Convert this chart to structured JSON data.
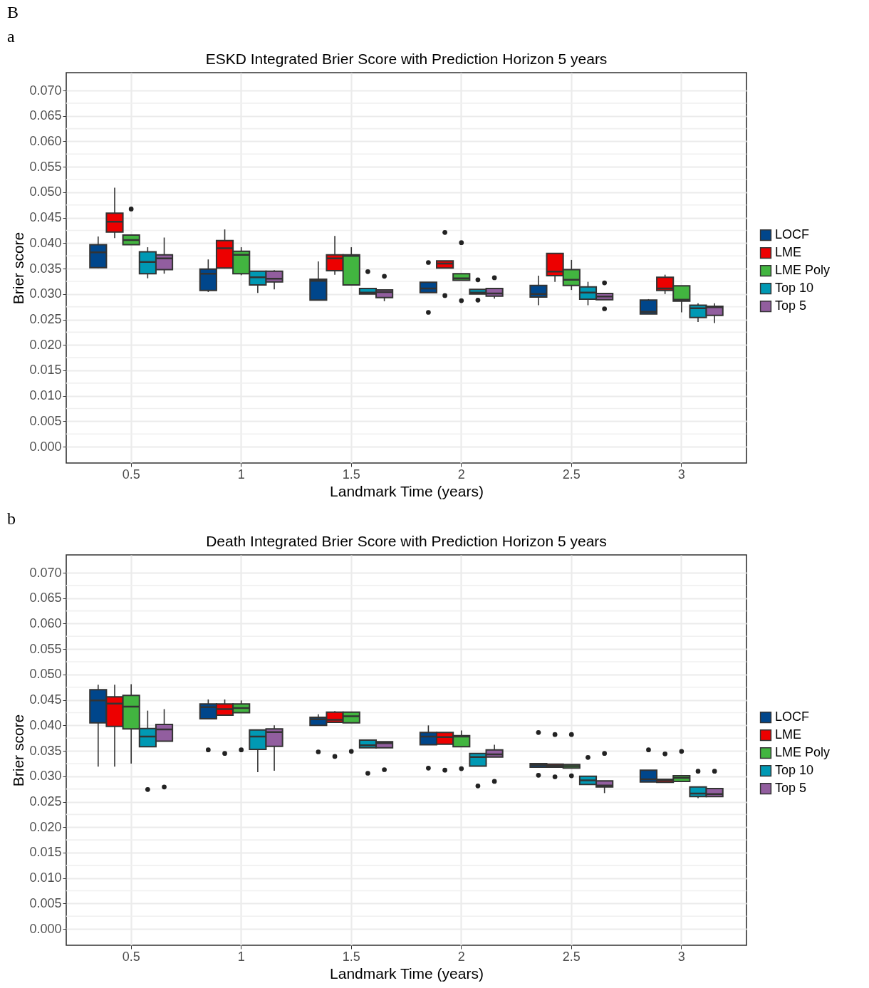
{
  "chart_data": [
    {
      "type": "box",
      "title": "ESKD Integrated Brier Score with Prediction Horizon 5 years",
      "xlabel": "Landmark Time (years)",
      "ylabel": "Brier score",
      "annotations": [
        "B",
        "a"
      ],
      "categories": [
        "0.5",
        "1",
        "1.5",
        "2",
        "2.5",
        "3"
      ],
      "ylim": [
        -0.0032,
        0.0735
      ],
      "yticks": [
        {
          "value": 0,
          "label": "0.000"
        },
        {
          "value": 0.005,
          "label": "0.005"
        },
        {
          "value": 0.01,
          "label": "0.010"
        },
        {
          "value": 0.015,
          "label": "0.015"
        },
        {
          "value": 0.02,
          "label": "0.020"
        },
        {
          "value": 0.025,
          "label": "0.025"
        },
        {
          "value": 0.03,
          "label": "0.030"
        },
        {
          "value": 0.035,
          "label": "0.035"
        },
        {
          "value": 0.04,
          "label": "0.040"
        },
        {
          "value": 0.045,
          "label": "0.045"
        },
        {
          "value": 0.05,
          "label": "0.050"
        },
        {
          "value": 0.055,
          "label": "0.055"
        },
        {
          "value": 0.06,
          "label": "0.060"
        },
        {
          "value": 0.065,
          "label": "0.065"
        },
        {
          "value": 0.07,
          "label": "0.070"
        }
      ],
      "grid": true,
      "legend": "right",
      "series": [
        {
          "name": "LOCF",
          "color": "#00468b",
          "boxes": [
            {
              "low": 0.0351,
              "q1": 0.0352,
              "median": 0.0382,
              "q3": 0.0397,
              "high": 0.0413
            },
            {
              "low": 0.0304,
              "q1": 0.0307,
              "median": 0.034,
              "q3": 0.0349,
              "high": 0.0368
            },
            {
              "low": 0.0288,
              "q1": 0.0288,
              "median": 0.0326,
              "q3": 0.0329,
              "high": 0.0364
            },
            {
              "low": 0.0303,
              "q1": 0.0303,
              "median": 0.0311,
              "q3": 0.0323,
              "high": 0.0323,
              "outliers": [
                0.0362,
                0.0264
              ]
            },
            {
              "low": 0.0278,
              "q1": 0.0294,
              "median": 0.03,
              "q3": 0.0317,
              "high": 0.0336
            },
            {
              "low": 0.0261,
              "q1": 0.0261,
              "median": 0.0265,
              "q3": 0.0288,
              "high": 0.029
            }
          ]
        },
        {
          "name": "LME",
          "color": "#ed0000",
          "boxes": [
            {
              "low": 0.041,
              "q1": 0.0422,
              "median": 0.0442,
              "q3": 0.0459,
              "high": 0.0509
            },
            {
              "low": 0.035,
              "q1": 0.0351,
              "median": 0.039,
              "q3": 0.0405,
              "high": 0.0427
            },
            {
              "low": 0.0338,
              "q1": 0.0346,
              "median": 0.037,
              "q3": 0.0377,
              "high": 0.0414
            },
            {
              "low": 0.0351,
              "q1": 0.0351,
              "median": 0.036,
              "q3": 0.0365,
              "high": 0.0365,
              "outliers": [
                0.0421,
                0.0297
              ]
            },
            {
              "low": 0.0324,
              "q1": 0.0336,
              "median": 0.0344,
              "q3": 0.038,
              "high": 0.038
            },
            {
              "low": 0.03,
              "q1": 0.0307,
              "median": 0.0311,
              "q3": 0.0333,
              "high": 0.0338
            }
          ]
        },
        {
          "name": "LME Poly",
          "color": "#42b540",
          "boxes": [
            {
              "low": 0.0397,
              "q1": 0.0397,
              "median": 0.0406,
              "q3": 0.0416,
              "high": 0.0416,
              "outliers": [
                0.0467
              ]
            },
            {
              "low": 0.0337,
              "q1": 0.034,
              "median": 0.0377,
              "q3": 0.0384,
              "high": 0.0392
            },
            {
              "low": 0.0318,
              "q1": 0.0318,
              "median": 0.0375,
              "q3": 0.0377,
              "high": 0.0392
            },
            {
              "low": 0.0327,
              "q1": 0.0327,
              "median": 0.0331,
              "q3": 0.034,
              "high": 0.034,
              "outliers": [
                0.0401,
                0.0287
              ]
            },
            {
              "low": 0.0308,
              "q1": 0.0317,
              "median": 0.0328,
              "q3": 0.0348,
              "high": 0.0367
            },
            {
              "low": 0.0264,
              "q1": 0.0286,
              "median": 0.0289,
              "q3": 0.0316,
              "high": 0.0316
            }
          ]
        },
        {
          "name": "Top 10",
          "color": "#0099b4",
          "boxes": [
            {
              "low": 0.0331,
              "q1": 0.034,
              "median": 0.0363,
              "q3": 0.0383,
              "high": 0.0392
            },
            {
              "low": 0.0302,
              "q1": 0.0318,
              "median": 0.0333,
              "q3": 0.0345,
              "high": 0.0345
            },
            {
              "low": 0.03,
              "q1": 0.03,
              "median": 0.0303,
              "q3": 0.0311,
              "high": 0.0311,
              "outliers": [
                0.0344
              ]
            },
            {
              "low": 0.03,
              "q1": 0.03,
              "median": 0.0303,
              "q3": 0.0309,
              "high": 0.0309,
              "outliers": [
                0.0328,
                0.0288
              ]
            },
            {
              "low": 0.0278,
              "q1": 0.029,
              "median": 0.0303,
              "q3": 0.0314,
              "high": 0.0324
            },
            {
              "low": 0.0245,
              "q1": 0.0254,
              "median": 0.0272,
              "q3": 0.0278,
              "high": 0.0282
            }
          ]
        },
        {
          "name": "Top 5",
          "color": "#925e9f",
          "boxes": [
            {
              "low": 0.034,
              "q1": 0.0348,
              "median": 0.037,
              "q3": 0.0377,
              "high": 0.0411
            },
            {
              "low": 0.0309,
              "q1": 0.0324,
              "median": 0.033,
              "q3": 0.0345,
              "high": 0.0347
            },
            {
              "low": 0.0286,
              "q1": 0.0293,
              "median": 0.0304,
              "q3": 0.0308,
              "high": 0.0308,
              "outliers": [
                0.0335
              ]
            },
            {
              "low": 0.0291,
              "q1": 0.0296,
              "median": 0.0301,
              "q3": 0.0311,
              "high": 0.0311,
              "outliers": [
                0.0332
              ]
            },
            {
              "low": 0.0289,
              "q1": 0.0289,
              "median": 0.0295,
              "q3": 0.0301,
              "high": 0.0301,
              "outliers": [
                0.0322,
                0.0271
              ]
            },
            {
              "low": 0.0243,
              "q1": 0.0258,
              "median": 0.0274,
              "q3": 0.0276,
              "high": 0.0282
            }
          ]
        }
      ]
    },
    {
      "type": "box",
      "title": "Death Integrated Brier Score with Prediction Horizon 5 years",
      "xlabel": "Landmark Time (years)",
      "ylabel": "Brier score",
      "annotations": [
        "b"
      ],
      "categories": [
        "0.5",
        "1",
        "1.5",
        "2",
        "2.5",
        "3"
      ],
      "ylim": [
        -0.0032,
        0.0735
      ],
      "yticks": [
        {
          "value": 0,
          "label": "0.000"
        },
        {
          "value": 0.005,
          "label": "0.005"
        },
        {
          "value": 0.01,
          "label": "0.010"
        },
        {
          "value": 0.015,
          "label": "0.015"
        },
        {
          "value": 0.02,
          "label": "0.020"
        },
        {
          "value": 0.025,
          "label": "0.025"
        },
        {
          "value": 0.03,
          "label": "0.030"
        },
        {
          "value": 0.035,
          "label": "0.035"
        },
        {
          "value": 0.04,
          "label": "0.040"
        },
        {
          "value": 0.045,
          "label": "0.045"
        },
        {
          "value": 0.05,
          "label": "0.050"
        },
        {
          "value": 0.055,
          "label": "0.055"
        },
        {
          "value": 0.06,
          "label": "0.060"
        },
        {
          "value": 0.065,
          "label": "0.065"
        },
        {
          "value": 0.07,
          "label": "0.070"
        }
      ],
      "grid": true,
      "legend": "right",
      "series": [
        {
          "name": "LOCF",
          "color": "#00468b",
          "boxes": [
            {
              "low": 0.0319,
              "q1": 0.0405,
              "median": 0.0449,
              "q3": 0.047,
              "high": 0.048
            },
            {
              "low": 0.0413,
              "q1": 0.0413,
              "median": 0.0436,
              "q3": 0.0442,
              "high": 0.0451,
              "outliers": [
                0.0352
              ]
            },
            {
              "low": 0.04,
              "q1": 0.04,
              "median": 0.0412,
              "q3": 0.0416,
              "high": 0.0422,
              "outliers": [
                0.0348
              ]
            },
            {
              "low": 0.0362,
              "q1": 0.0362,
              "median": 0.0378,
              "q3": 0.0386,
              "high": 0.04,
              "outliers": [
                0.0316
              ]
            },
            {
              "low": 0.0318,
              "q1": 0.0318,
              "median": 0.0322,
              "q3": 0.0325,
              "high": 0.0325,
              "outliers": [
                0.0386,
                0.0302
              ]
            },
            {
              "low": 0.0289,
              "q1": 0.0289,
              "median": 0.0294,
              "q3": 0.0312,
              "high": 0.0312,
              "outliers": [
                0.0352
              ]
            }
          ]
        },
        {
          "name": "LME",
          "color": "#ed0000",
          "boxes": [
            {
              "low": 0.0319,
              "q1": 0.0398,
              "median": 0.0443,
              "q3": 0.0456,
              "high": 0.048
            },
            {
              "low": 0.042,
              "q1": 0.042,
              "median": 0.0432,
              "q3": 0.0442,
              "high": 0.0451,
              "outliers": [
                0.0345
              ]
            },
            {
              "low": 0.0406,
              "q1": 0.0406,
              "median": 0.0411,
              "q3": 0.0426,
              "high": 0.0428,
              "outliers": [
                0.0339
              ]
            },
            {
              "low": 0.0363,
              "q1": 0.0363,
              "median": 0.0377,
              "q3": 0.0386,
              "high": 0.0386,
              "outliers": [
                0.0312
              ]
            },
            {
              "low": 0.0318,
              "q1": 0.0318,
              "median": 0.0321,
              "q3": 0.0324,
              "high": 0.0324,
              "outliers": [
                0.0382,
                0.0299
              ]
            },
            {
              "low": 0.0288,
              "q1": 0.0288,
              "median": 0.0292,
              "q3": 0.0294,
              "high": 0.0294,
              "outliers": [
                0.0344
              ]
            }
          ]
        },
        {
          "name": "LME Poly",
          "color": "#42b540",
          "boxes": [
            {
              "low": 0.0325,
              "q1": 0.0393,
              "median": 0.0437,
              "q3": 0.0459,
              "high": 0.0481
            },
            {
              "low": 0.0425,
              "q1": 0.0425,
              "median": 0.0434,
              "q3": 0.0442,
              "high": 0.0449,
              "outliers": [
                0.0352
              ]
            },
            {
              "low": 0.0405,
              "q1": 0.0405,
              "median": 0.0418,
              "q3": 0.0426,
              "high": 0.0426,
              "outliers": [
                0.0349
              ]
            },
            {
              "low": 0.0358,
              "q1": 0.0358,
              "median": 0.0378,
              "q3": 0.038,
              "high": 0.039,
              "outliers": [
                0.0315
              ]
            },
            {
              "low": 0.0316,
              "q1": 0.0316,
              "median": 0.032,
              "q3": 0.0323,
              "high": 0.0323,
              "outliers": [
                0.0382,
                0.0301
              ]
            },
            {
              "low": 0.029,
              "q1": 0.029,
              "median": 0.0297,
              "q3": 0.0301,
              "high": 0.0301,
              "outliers": [
                0.0349
              ]
            }
          ]
        },
        {
          "name": "Top 10",
          "color": "#0099b4",
          "boxes": [
            {
              "low": 0.0358,
              "q1": 0.0358,
              "median": 0.0378,
              "q3": 0.0394,
              "high": 0.0429,
              "outliers": [
                0.0274
              ]
            },
            {
              "low": 0.0308,
              "q1": 0.0353,
              "median": 0.0378,
              "q3": 0.0391,
              "high": 0.0391
            },
            {
              "low": 0.0356,
              "q1": 0.0356,
              "median": 0.0361,
              "q3": 0.0371,
              "high": 0.0371,
              "outliers": [
                0.0306
              ]
            },
            {
              "low": 0.032,
              "q1": 0.032,
              "median": 0.0338,
              "q3": 0.0345,
              "high": 0.0345,
              "outliers": [
                0.0281
              ]
            },
            {
              "low": 0.0284,
              "q1": 0.0284,
              "median": 0.0292,
              "q3": 0.03,
              "high": 0.03,
              "outliers": [
                0.0337
              ]
            },
            {
              "low": 0.0257,
              "q1": 0.026,
              "median": 0.0266,
              "q3": 0.0279,
              "high": 0.028,
              "outliers": [
                0.031
              ]
            }
          ]
        },
        {
          "name": "Top 5",
          "color": "#925e9f",
          "boxes": [
            {
              "low": 0.0369,
              "q1": 0.0369,
              "median": 0.0392,
              "q3": 0.0402,
              "high": 0.0432,
              "outliers": [
                0.0279
              ]
            },
            {
              "low": 0.0311,
              "q1": 0.0359,
              "median": 0.0387,
              "q3": 0.0393,
              "high": 0.04
            },
            {
              "low": 0.0356,
              "q1": 0.0356,
              "median": 0.0365,
              "q3": 0.0368,
              "high": 0.0368,
              "outliers": [
                0.0313
              ]
            },
            {
              "low": 0.0338,
              "q1": 0.0338,
              "median": 0.0343,
              "q3": 0.0352,
              "high": 0.0362,
              "outliers": [
                0.029
              ]
            },
            {
              "low": 0.0267,
              "q1": 0.0279,
              "median": 0.0282,
              "q3": 0.0291,
              "high": 0.0291,
              "outliers": [
                0.0345
              ]
            },
            {
              "low": 0.026,
              "q1": 0.026,
              "median": 0.0265,
              "q3": 0.0276,
              "high": 0.0276,
              "outliers": [
                0.031
              ]
            }
          ]
        }
      ]
    }
  ]
}
